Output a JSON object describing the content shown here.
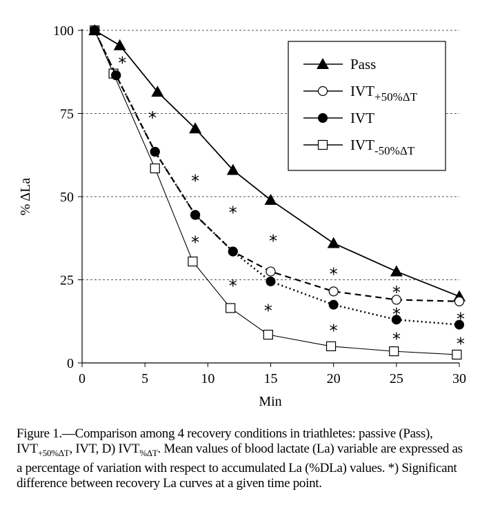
{
  "chart_data": {
    "type": "line",
    "title": "",
    "xlabel": "Min",
    "ylabel": "% ΔLa",
    "xlim": [
      0,
      30
    ],
    "ylim": [
      0,
      100
    ],
    "xticks": [
      0,
      5,
      10,
      15,
      20,
      25,
      30
    ],
    "yticks": [
      0,
      25,
      50,
      75,
      100
    ],
    "grid": "horizontal dotted at y ticks",
    "legend_position": "top-right",
    "series": [
      {
        "name": "Pass",
        "legend_main": "Pass",
        "legend_sub": "",
        "marker": "filled-triangle",
        "line": "solid",
        "x": [
          1,
          3,
          6,
          9,
          12,
          15,
          20,
          25,
          30
        ],
        "y": [
          100,
          95.5,
          81.5,
          70.5,
          58,
          49,
          36,
          27.5,
          20
        ]
      },
      {
        "name": "IVT+50%ΔT",
        "legend_main": "IVT",
        "legend_sub": "+50%ΔT",
        "marker": "open-circle",
        "line": "dashed",
        "x": [
          1,
          2.7,
          5.8,
          9,
          12,
          15,
          20,
          25,
          30
        ],
        "y": [
          100,
          86.5,
          63.5,
          44.5,
          33.5,
          27.5,
          21.5,
          19,
          18.5
        ]
      },
      {
        "name": "IVT",
        "legend_main": "IVT",
        "legend_sub": "",
        "marker": "filled-circle",
        "line": "dotted",
        "x": [
          1,
          2.7,
          5.8,
          9,
          12,
          15,
          20,
          25,
          30
        ],
        "y": [
          100,
          86.5,
          63.5,
          44.5,
          33.5,
          24.5,
          17.5,
          13,
          11.5
        ]
      },
      {
        "name": "IVT-50%ΔT",
        "legend_main": "IVT",
        "legend_sub": "-50%ΔT",
        "marker": "open-square",
        "line": "thin-solid",
        "x": [
          1,
          2.5,
          5.8,
          8.8,
          11.8,
          14.8,
          19.8,
          24.8,
          29.8
        ],
        "y": [
          100,
          87,
          58.5,
          30.5,
          16.5,
          8.5,
          5,
          3.5,
          2.5
        ]
      }
    ],
    "annotations": [
      {
        "text": "*",
        "x": 3.2,
        "y": 91
      },
      {
        "text": "*",
        "x": 5.6,
        "y": 74.5
      },
      {
        "text": "*",
        "x": 9,
        "y": 55.5
      },
      {
        "text": "*",
        "x": 12,
        "y": 46
      },
      {
        "text": "*",
        "x": 15.2,
        "y": 37.5
      },
      {
        "text": "*",
        "x": 9,
        "y": 37
      },
      {
        "text": "*",
        "x": 12,
        "y": 24
      },
      {
        "text": "*",
        "x": 14.8,
        "y": 16.5
      },
      {
        "text": "*",
        "x": 20,
        "y": 27.5
      },
      {
        "text": "*",
        "x": 20,
        "y": 10.5
      },
      {
        "text": "*",
        "x": 25,
        "y": 22
      },
      {
        "text": "*",
        "x": 25,
        "y": 15.5
      },
      {
        "text": "*",
        "x": 25,
        "y": 8
      },
      {
        "text": "*",
        "x": 30.1,
        "y": 14
      },
      {
        "text": "*",
        "x": 30.1,
        "y": 6.5
      }
    ]
  },
  "caption": {
    "part1": "Figure 1.—Comparison among 4 recovery conditions in triathletes: passive (Pass), IVT",
    "sub1": "+50%ΔT",
    "part2": ", IVT, D) IVT",
    "sub2": "%ΔT",
    "part3": ". Mean values of blood lactate (La) variable are expressed as a percentage of variation with respect to accumulated La (%DLa) values. *) Significant difference between recovery La curves at a given time point."
  }
}
